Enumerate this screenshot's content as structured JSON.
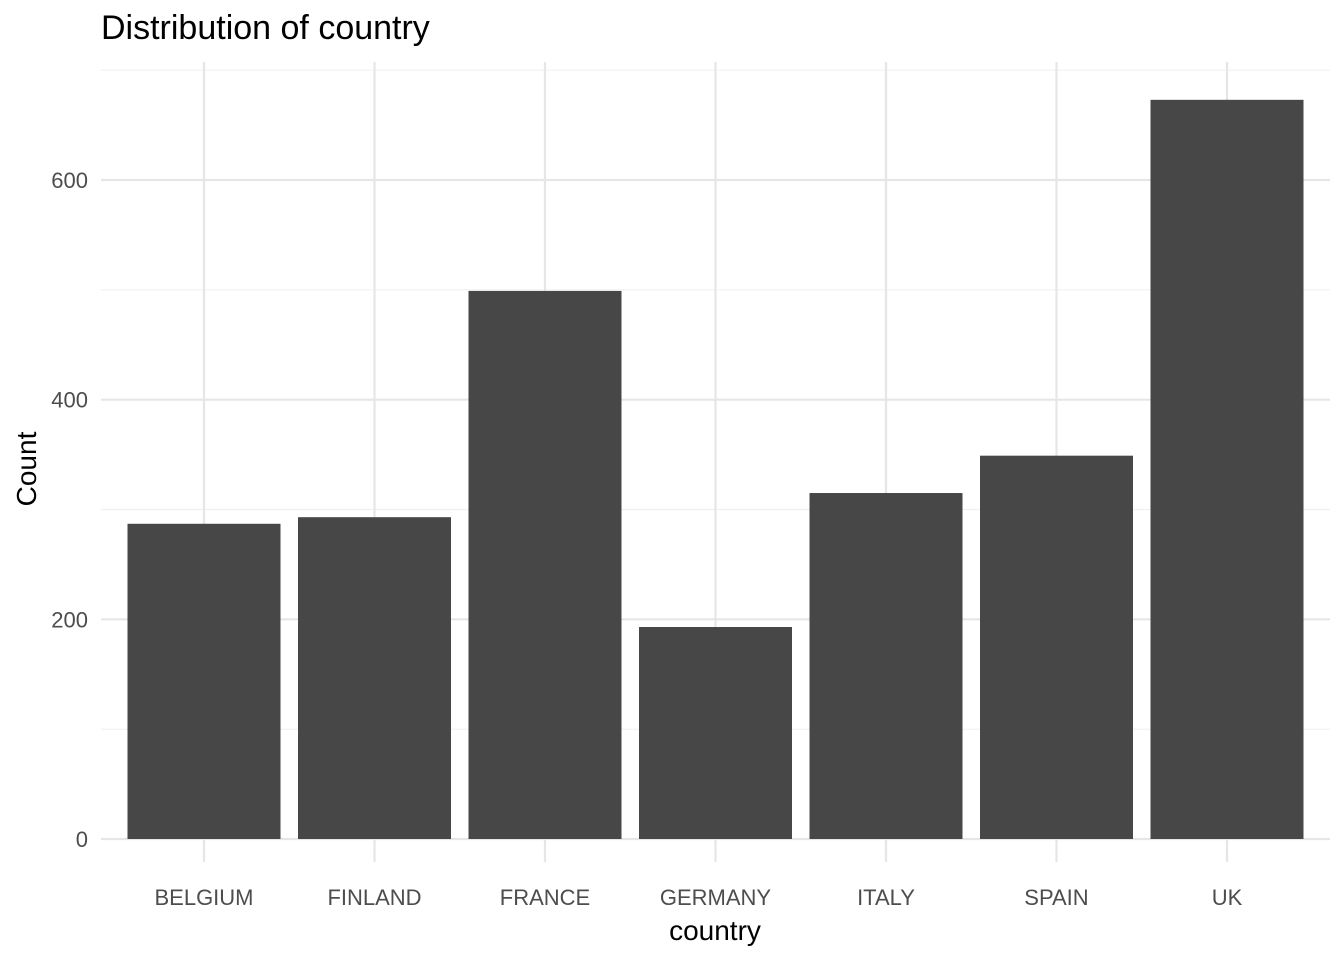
{
  "chart_data": {
    "type": "bar",
    "title": "Distribution of country",
    "xlabel": "country",
    "ylabel": "Count",
    "categories": [
      "BELGIUM",
      "FINLAND",
      "FRANCE",
      "GERMANY",
      "ITALY",
      "SPAIN",
      "UK"
    ],
    "values": [
      287,
      293,
      499,
      193,
      315,
      349,
      673
    ],
    "ylim": [
      0,
      700
    ],
    "yticks": [
      0,
      200,
      400,
      600
    ],
    "ytick_labels": [
      "0",
      "200",
      "400",
      "600"
    ],
    "grid": true,
    "legend": "none",
    "bar_color": "#474747",
    "grid_major_color": "#e6e6e6",
    "grid_minor_color": "#f0f0f0"
  }
}
